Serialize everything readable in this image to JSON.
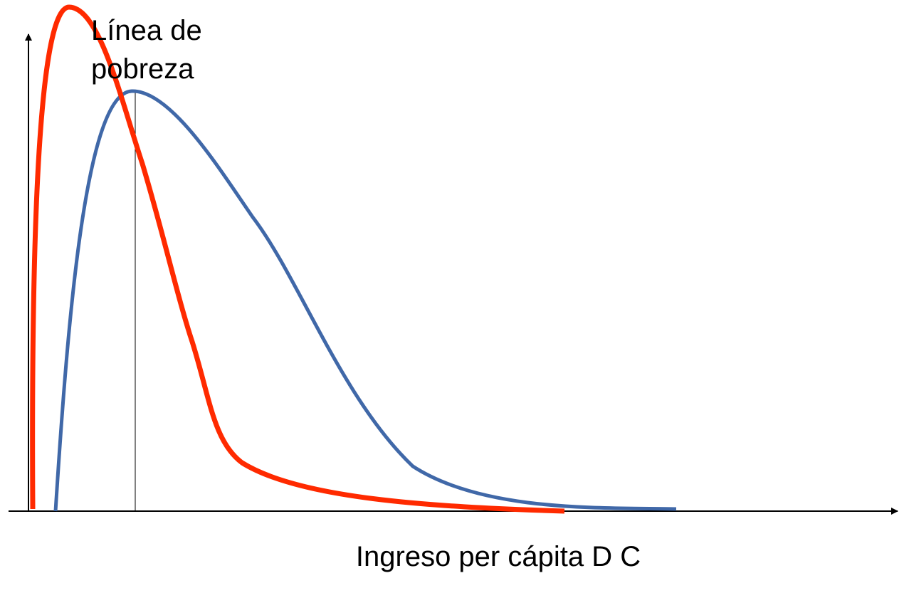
{
  "poverty_line_label": [
    "Línea de",
    "pobreza"
  ],
  "x_axis_label": "Ingreso per cápita D C"
}
